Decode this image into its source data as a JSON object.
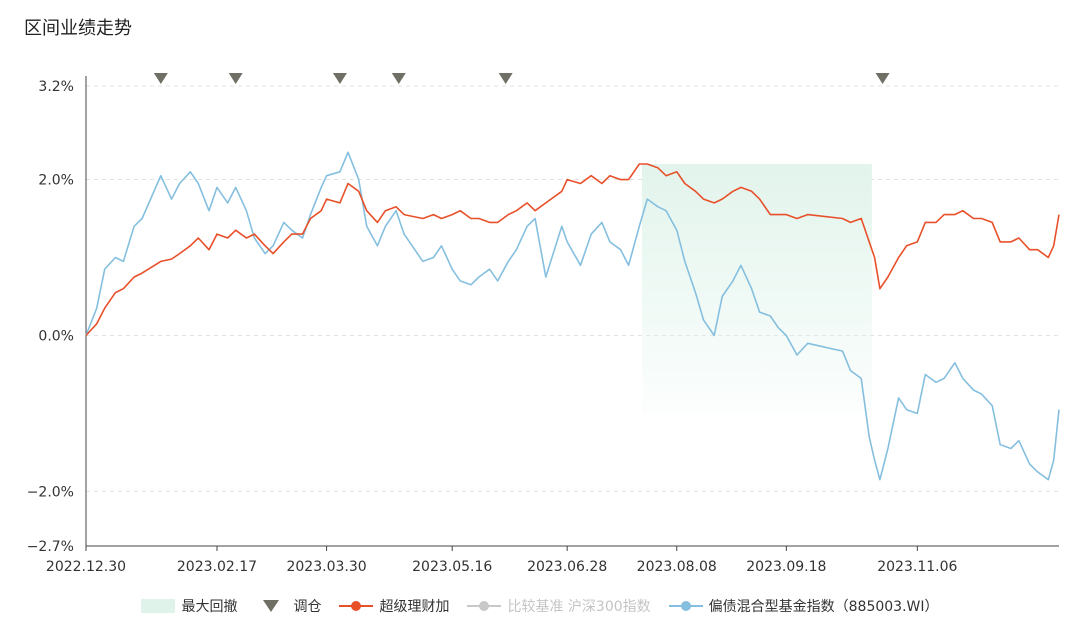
{
  "title": "区间业绩走势",
  "colors": {
    "fund": "#e8502a",
    "index": "#85bfdf",
    "benchmark": "#c8c8c8",
    "drawdown": "#dff3ea",
    "rebalance": "#6f6f66",
    "grid": "#e3e3e3",
    "axis": "#444444"
  },
  "legend": {
    "drawdown": "最大回撤",
    "rebalance": "调仓",
    "fund": "超级理财加",
    "benchmark": "比较基准 沪深300指数",
    "index": "偏债混合型基金指数（885003.WI）"
  },
  "chart_data": {
    "type": "line",
    "title": "区间业绩走势",
    "x_ticks": [
      "2022.12.30",
      "2023.02.17",
      "2023.03.30",
      "2023.05.16",
      "2023.06.28",
      "2023.08.08",
      "2023.09.18",
      "2023.11.06"
    ],
    "x_range": [
      "2022-12-30",
      "2023-12-29"
    ],
    "y_ticks": [
      "3.2%",
      "2.0%",
      "0.0%",
      "−2.0%",
      "−2.7%"
    ],
    "y_tick_values": [
      3.2,
      2.0,
      0.0,
      -2.0,
      -2.7
    ],
    "ylim": [
      -2.7,
      3.2
    ],
    "y_unit": "%",
    "grid": "horizontal dashed",
    "legend_position": "bottom",
    "rebalance_dates": [
      "2023-01-27",
      "2023-02-24",
      "2023-04-04",
      "2023-04-26",
      "2023-06-05",
      "2023-10-24"
    ],
    "max_drawdown": {
      "start": "2023-07-26",
      "end": "2023-10-20"
    },
    "series": [
      {
        "name": "超级理财加",
        "key": "fund",
        "values": [
          [
            "2022-12-30",
            0.0
          ],
          [
            "2023-01-03",
            0.15
          ],
          [
            "2023-01-06",
            0.35
          ],
          [
            "2023-01-10",
            0.55
          ],
          [
            "2023-01-13",
            0.6
          ],
          [
            "2023-01-17",
            0.75
          ],
          [
            "2023-01-20",
            0.8
          ],
          [
            "2023-01-27",
            0.95
          ],
          [
            "2023-01-31",
            0.98
          ],
          [
            "2023-02-03",
            1.05
          ],
          [
            "2023-02-07",
            1.15
          ],
          [
            "2023-02-10",
            1.25
          ],
          [
            "2023-02-14",
            1.1
          ],
          [
            "2023-02-17",
            1.3
          ],
          [
            "2023-02-21",
            1.25
          ],
          [
            "2023-02-24",
            1.35
          ],
          [
            "2023-02-28",
            1.25
          ],
          [
            "2023-03-03",
            1.3
          ],
          [
            "2023-03-07",
            1.15
          ],
          [
            "2023-03-10",
            1.05
          ],
          [
            "2023-03-14",
            1.2
          ],
          [
            "2023-03-17",
            1.3
          ],
          [
            "2023-03-21",
            1.3
          ],
          [
            "2023-03-24",
            1.5
          ],
          [
            "2023-03-28",
            1.6
          ],
          [
            "2023-03-30",
            1.75
          ],
          [
            "2023-04-04",
            1.7
          ],
          [
            "2023-04-07",
            1.95
          ],
          [
            "2023-04-11",
            1.85
          ],
          [
            "2023-04-14",
            1.6
          ],
          [
            "2023-04-18",
            1.45
          ],
          [
            "2023-04-21",
            1.6
          ],
          [
            "2023-04-25",
            1.65
          ],
          [
            "2023-04-28",
            1.55
          ],
          [
            "2023-05-05",
            1.5
          ],
          [
            "2023-05-09",
            1.55
          ],
          [
            "2023-05-12",
            1.5
          ],
          [
            "2023-05-16",
            1.55
          ],
          [
            "2023-05-19",
            1.6
          ],
          [
            "2023-05-23",
            1.5
          ],
          [
            "2023-05-26",
            1.5
          ],
          [
            "2023-05-30",
            1.45
          ],
          [
            "2023-06-02",
            1.45
          ],
          [
            "2023-06-06",
            1.55
          ],
          [
            "2023-06-09",
            1.6
          ],
          [
            "2023-06-13",
            1.7
          ],
          [
            "2023-06-16",
            1.6
          ],
          [
            "2023-06-20",
            1.7
          ],
          [
            "2023-06-26",
            1.85
          ],
          [
            "2023-06-28",
            2.0
          ],
          [
            "2023-07-03",
            1.95
          ],
          [
            "2023-07-07",
            2.05
          ],
          [
            "2023-07-11",
            1.95
          ],
          [
            "2023-07-14",
            2.05
          ],
          [
            "2023-07-18",
            2.0
          ],
          [
            "2023-07-21",
            2.0
          ],
          [
            "2023-07-25",
            2.2
          ],
          [
            "2023-07-28",
            2.2
          ],
          [
            "2023-08-01",
            2.15
          ],
          [
            "2023-08-04",
            2.05
          ],
          [
            "2023-08-08",
            2.1
          ],
          [
            "2023-08-11",
            1.95
          ],
          [
            "2023-08-15",
            1.85
          ],
          [
            "2023-08-18",
            1.75
          ],
          [
            "2023-08-22",
            1.7
          ],
          [
            "2023-08-25",
            1.75
          ],
          [
            "2023-08-29",
            1.85
          ],
          [
            "2023-09-01",
            1.9
          ],
          [
            "2023-09-05",
            1.85
          ],
          [
            "2023-09-08",
            1.75
          ],
          [
            "2023-09-12",
            1.55
          ],
          [
            "2023-09-15",
            1.55
          ],
          [
            "2023-09-18",
            1.55
          ],
          [
            "2023-09-22",
            1.5
          ],
          [
            "2023-09-26",
            1.55
          ],
          [
            "2023-10-09",
            1.5
          ],
          [
            "2023-10-12",
            1.45
          ],
          [
            "2023-10-16",
            1.5
          ],
          [
            "2023-10-17",
            1.4
          ],
          [
            "2023-10-19",
            1.2
          ],
          [
            "2023-10-21",
            1.0
          ],
          [
            "2023-10-23",
            0.6
          ],
          [
            "2023-10-26",
            0.75
          ],
          [
            "2023-10-30",
            1.0
          ],
          [
            "2023-11-02",
            1.15
          ],
          [
            "2023-11-06",
            1.2
          ],
          [
            "2023-11-09",
            1.45
          ],
          [
            "2023-11-13",
            1.45
          ],
          [
            "2023-11-16",
            1.55
          ],
          [
            "2023-11-20",
            1.55
          ],
          [
            "2023-11-23",
            1.6
          ],
          [
            "2023-11-27",
            1.5
          ],
          [
            "2023-11-30",
            1.5
          ],
          [
            "2023-12-04",
            1.45
          ],
          [
            "2023-12-07",
            1.2
          ],
          [
            "2023-12-11",
            1.2
          ],
          [
            "2023-12-14",
            1.25
          ],
          [
            "2023-12-18",
            1.1
          ],
          [
            "2023-12-21",
            1.1
          ],
          [
            "2023-12-25",
            1.0
          ],
          [
            "2023-12-27",
            1.15
          ],
          [
            "2023-12-29",
            1.55
          ]
        ]
      },
      {
        "name": "偏债混合型基金指数（885003.WI）",
        "key": "index",
        "values": [
          [
            "2022-12-30",
            0.0
          ],
          [
            "2023-01-03",
            0.35
          ],
          [
            "2023-01-06",
            0.85
          ],
          [
            "2023-01-10",
            1.0
          ],
          [
            "2023-01-13",
            0.95
          ],
          [
            "2023-01-17",
            1.4
          ],
          [
            "2023-01-20",
            1.5
          ],
          [
            "2023-01-27",
            2.05
          ],
          [
            "2023-01-31",
            1.75
          ],
          [
            "2023-02-03",
            1.95
          ],
          [
            "2023-02-07",
            2.1
          ],
          [
            "2023-02-10",
            1.95
          ],
          [
            "2023-02-14",
            1.6
          ],
          [
            "2023-02-17",
            1.9
          ],
          [
            "2023-02-21",
            1.7
          ],
          [
            "2023-02-24",
            1.9
          ],
          [
            "2023-02-28",
            1.6
          ],
          [
            "2023-03-03",
            1.25
          ],
          [
            "2023-03-07",
            1.05
          ],
          [
            "2023-03-10",
            1.15
          ],
          [
            "2023-03-14",
            1.45
          ],
          [
            "2023-03-17",
            1.35
          ],
          [
            "2023-03-21",
            1.25
          ],
          [
            "2023-03-24",
            1.55
          ],
          [
            "2023-03-28",
            1.9
          ],
          [
            "2023-03-30",
            2.05
          ],
          [
            "2023-04-04",
            2.1
          ],
          [
            "2023-04-07",
            2.35
          ],
          [
            "2023-04-11",
            2.0
          ],
          [
            "2023-04-14",
            1.4
          ],
          [
            "2023-04-18",
            1.15
          ],
          [
            "2023-04-21",
            1.4
          ],
          [
            "2023-04-25",
            1.6
          ],
          [
            "2023-04-28",
            1.3
          ],
          [
            "2023-05-05",
            0.95
          ],
          [
            "2023-05-09",
            1.0
          ],
          [
            "2023-05-12",
            1.15
          ],
          [
            "2023-05-16",
            0.85
          ],
          [
            "2023-05-19",
            0.7
          ],
          [
            "2023-05-23",
            0.65
          ],
          [
            "2023-05-26",
            0.75
          ],
          [
            "2023-05-30",
            0.85
          ],
          [
            "2023-06-02",
            0.7
          ],
          [
            "2023-06-06",
            0.95
          ],
          [
            "2023-06-09",
            1.1
          ],
          [
            "2023-06-13",
            1.4
          ],
          [
            "2023-06-16",
            1.5
          ],
          [
            "2023-06-20",
            0.75
          ],
          [
            "2023-06-26",
            1.4
          ],
          [
            "2023-06-28",
            1.2
          ],
          [
            "2023-07-03",
            0.9
          ],
          [
            "2023-07-07",
            1.3
          ],
          [
            "2023-07-11",
            1.45
          ],
          [
            "2023-07-14",
            1.2
          ],
          [
            "2023-07-18",
            1.1
          ],
          [
            "2023-07-21",
            0.9
          ],
          [
            "2023-07-25",
            1.4
          ],
          [
            "2023-07-28",
            1.75
          ],
          [
            "2023-08-01",
            1.65
          ],
          [
            "2023-08-04",
            1.6
          ],
          [
            "2023-08-08",
            1.35
          ],
          [
            "2023-08-11",
            0.95
          ],
          [
            "2023-08-15",
            0.55
          ],
          [
            "2023-08-18",
            0.2
          ],
          [
            "2023-08-22",
            0.0
          ],
          [
            "2023-08-25",
            0.5
          ],
          [
            "2023-08-29",
            0.7
          ],
          [
            "2023-09-01",
            0.9
          ],
          [
            "2023-09-05",
            0.6
          ],
          [
            "2023-09-08",
            0.3
          ],
          [
            "2023-09-12",
            0.25
          ],
          [
            "2023-09-15",
            0.1
          ],
          [
            "2023-09-18",
            0.0
          ],
          [
            "2023-09-22",
            -0.25
          ],
          [
            "2023-09-26",
            -0.1
          ],
          [
            "2023-10-09",
            -0.2
          ],
          [
            "2023-10-12",
            -0.45
          ],
          [
            "2023-10-16",
            -0.55
          ],
          [
            "2023-10-17",
            -0.8
          ],
          [
            "2023-10-19",
            -1.3
          ],
          [
            "2023-10-21",
            -1.6
          ],
          [
            "2023-10-23",
            -1.85
          ],
          [
            "2023-10-26",
            -1.45
          ],
          [
            "2023-10-30",
            -0.8
          ],
          [
            "2023-11-02",
            -0.95
          ],
          [
            "2023-11-06",
            -1.0
          ],
          [
            "2023-11-09",
            -0.5
          ],
          [
            "2023-11-13",
            -0.6
          ],
          [
            "2023-11-16",
            -0.55
          ],
          [
            "2023-11-20",
            -0.35
          ],
          [
            "2023-11-23",
            -0.55
          ],
          [
            "2023-11-27",
            -0.7
          ],
          [
            "2023-11-30",
            -0.75
          ],
          [
            "2023-12-04",
            -0.9
          ],
          [
            "2023-12-07",
            -1.4
          ],
          [
            "2023-12-11",
            -1.45
          ],
          [
            "2023-12-14",
            -1.35
          ],
          [
            "2023-12-18",
            -1.65
          ],
          [
            "2023-12-21",
            -1.75
          ],
          [
            "2023-12-25",
            -1.85
          ],
          [
            "2023-12-27",
            -1.6
          ],
          [
            "2023-12-29",
            -0.95
          ]
        ]
      }
    ]
  }
}
